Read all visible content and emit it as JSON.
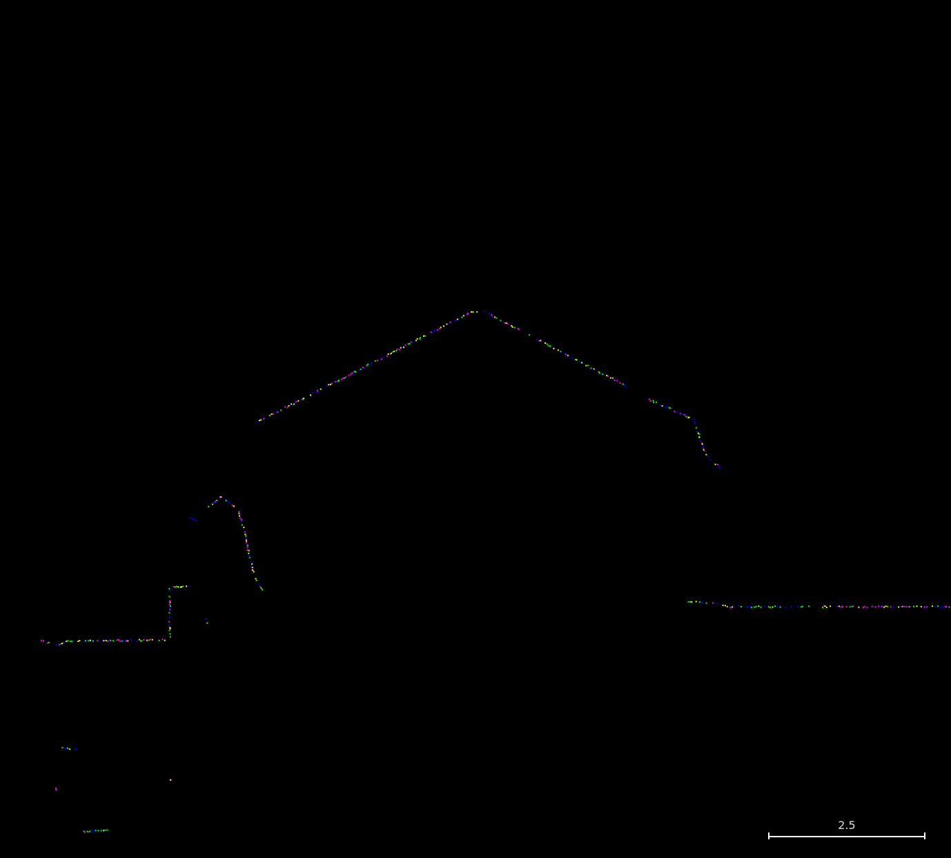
{
  "scale_bar": {
    "label": "2.5"
  },
  "colors": {
    "background": "#000000",
    "points": [
      "#0000ff",
      "#ff00ff",
      "#00ff00",
      "#ffff00"
    ],
    "scale_bar": "#ffffff"
  }
}
